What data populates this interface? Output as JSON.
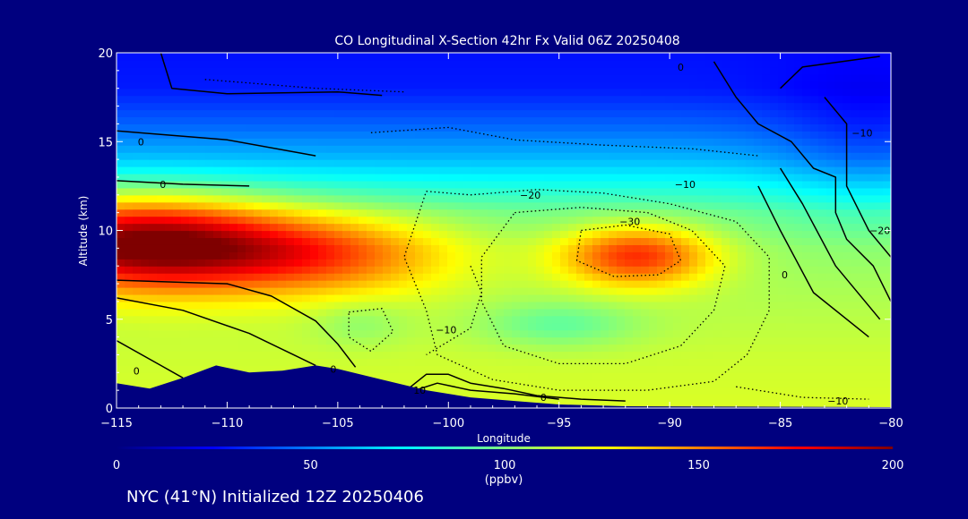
{
  "chart_data": {
    "type": "heatmap",
    "title": "CO Longitudinal X-Section 42hr  Fx Valid 06Z 20250408",
    "xlabel": "Longitude",
    "ylabel": "Altitude (km)",
    "xlim": [
      -115,
      -80
    ],
    "ylim": [
      0,
      20
    ],
    "x_ticks": [
      -115,
      -110,
      -105,
      -100,
      -95,
      -90,
      -85,
      -80
    ],
    "x_tick_labels": [
      "−115",
      "−110",
      "−105",
      "−100",
      "−95",
      "−90",
      "−85",
      "−80"
    ],
    "y_ticks": [
      0,
      5,
      10,
      15,
      20
    ],
    "y_tick_labels": [
      "0",
      "5",
      "10",
      "15",
      "20"
    ],
    "colorbar": {
      "min": 0,
      "max": 200,
      "ticks": [
        0,
        50,
        100,
        150,
        200
      ],
      "tick_labels": [
        "0",
        "50",
        "100",
        "150",
        "200"
      ],
      "unit": "(ppbv)"
    },
    "co_field": {
      "background": [
        {
          "alt": 0,
          "value": 118
        },
        {
          "alt": 3,
          "value": 115
        },
        {
          "alt": 6,
          "value": 110
        },
        {
          "alt": 9,
          "value": 105
        },
        {
          "alt": 11,
          "value": 96
        },
        {
          "alt": 12.5,
          "value": 80
        },
        {
          "alt": 14,
          "value": 62
        },
        {
          "alt": 16,
          "value": 44
        },
        {
          "alt": 18,
          "value": 30
        },
        {
          "alt": 20,
          "value": 28
        }
      ],
      "features": [
        {
          "lon": -114,
          "alt": 9.3,
          "sigma_lon": 4.5,
          "sigma_alt": 1.8,
          "value": 95
        },
        {
          "lon": -106,
          "alt": 8.7,
          "sigma_lon": 4.5,
          "sigma_alt": 1.6,
          "value": 50
        },
        {
          "lon": -91.5,
          "alt": 8.6,
          "sigma_lon": 2.4,
          "sigma_alt": 1.2,
          "value": 60
        },
        {
          "lon": -95,
          "alt": 4.7,
          "sigma_lon": 2.5,
          "sigma_alt": 0.9,
          "value": -18
        },
        {
          "lon": -104,
          "alt": 4.8,
          "sigma_lon": 1.5,
          "sigma_alt": 0.9,
          "value": -10
        },
        {
          "lon": -81,
          "alt": 14.5,
          "sigma_lon": 3,
          "sigma_alt": 3,
          "value": -15
        }
      ]
    },
    "terrain": [
      {
        "lon": -115,
        "alt": 1.4
      },
      {
        "lon": -113.5,
        "alt": 1.1
      },
      {
        "lon": -112,
        "alt": 1.7
      },
      {
        "lon": -110.5,
        "alt": 2.4
      },
      {
        "lon": -109,
        "alt": 2.0
      },
      {
        "lon": -107.5,
        "alt": 2.1
      },
      {
        "lon": -106,
        "alt": 2.4
      },
      {
        "lon": -105,
        "alt": 2.2
      },
      {
        "lon": -103,
        "alt": 1.6
      },
      {
        "lon": -101,
        "alt": 1.0
      },
      {
        "lon": -99,
        "alt": 0.6
      },
      {
        "lon": -97,
        "alt": 0.4
      },
      {
        "lon": -95,
        "alt": 0.2
      },
      {
        "lon": -92,
        "alt": 0.1
      },
      {
        "lon": -80,
        "alt": 0.05
      }
    ],
    "contours": [
      {
        "dashed": false,
        "points": [
          [
            -113,
            20
          ],
          [
            -112.5,
            18
          ],
          [
            -110,
            17.7
          ],
          [
            -105,
            17.8
          ],
          [
            -103,
            17.6
          ]
        ]
      },
      {
        "dashed": false,
        "points": [
          [
            -115,
            15.6
          ],
          [
            -113,
            15.4
          ],
          [
            -110,
            15.1
          ],
          [
            -106,
            14.2
          ]
        ]
      },
      {
        "dashed": false,
        "points": [
          [
            -115,
            12.8
          ],
          [
            -112,
            12.6
          ],
          [
            -109,
            12.5
          ]
        ]
      },
      {
        "dashed": false,
        "points": [
          [
            -115,
            7.2
          ],
          [
            -110,
            7.0
          ],
          [
            -108,
            6.3
          ],
          [
            -106,
            4.9
          ],
          [
            -105,
            3.6
          ],
          [
            -104.2,
            2.3
          ]
        ]
      },
      {
        "dashed": false,
        "points": [
          [
            -115,
            6.2
          ],
          [
            -112,
            5.5
          ],
          [
            -109,
            4.2
          ],
          [
            -107,
            3.0
          ],
          [
            -106,
            2.4
          ]
        ]
      },
      {
        "dashed": false,
        "points": [
          [
            -115,
            3.8
          ],
          [
            -113,
            2.4
          ],
          [
            -112,
            1.7
          ]
        ]
      },
      {
        "dashed": false,
        "points": [
          [
            -102,
            0.9
          ],
          [
            -101,
            1.9
          ],
          [
            -100,
            1.9
          ],
          [
            -99,
            1.4
          ],
          [
            -97.5,
            1.1
          ],
          [
            -96,
            0.7
          ],
          [
            -94,
            0.5
          ],
          [
            -92,
            0.4
          ]
        ]
      },
      {
        "dashed": false,
        "points": [
          [
            -101.5,
            1.0
          ],
          [
            -100.5,
            1.4
          ],
          [
            -99,
            1.0
          ],
          [
            -97,
            0.8
          ],
          [
            -95,
            0.5
          ]
        ]
      },
      {
        "dashed": false,
        "points": [
          [
            -88,
            19.5
          ],
          [
            -87,
            17.5
          ],
          [
            -86,
            16.0
          ],
          [
            -84.5,
            15.0
          ],
          [
            -83.5,
            13.5
          ],
          [
            -82.5,
            13.0
          ],
          [
            -82.5,
            11.0
          ],
          [
            -82.0,
            9.5
          ],
          [
            -80.8,
            8.0
          ],
          [
            -80,
            6.0
          ]
        ]
      },
      {
        "dashed": false,
        "points": [
          [
            -83,
            17.5
          ],
          [
            -82,
            16.0
          ],
          [
            -82,
            12.5
          ],
          [
            -81,
            10.0
          ],
          [
            -80,
            8.5
          ]
        ]
      },
      {
        "dashed": false,
        "points": [
          [
            -85,
            13.5
          ],
          [
            -84,
            11.5
          ],
          [
            -82.5,
            8.0
          ],
          [
            -80.5,
            5.0
          ]
        ]
      },
      {
        "dashed": false,
        "points": [
          [
            -86,
            12.5
          ],
          [
            -85,
            10.0
          ],
          [
            -83.5,
            6.5
          ],
          [
            -81,
            4.0
          ]
        ]
      },
      {
        "dashed": false,
        "points": [
          [
            -80.5,
            19.8
          ],
          [
            -84,
            19.2
          ],
          [
            -85,
            18.0
          ]
        ]
      },
      {
        "dashed": true,
        "points": [
          [
            -101,
            12.2
          ],
          [
            -99,
            12.0
          ],
          [
            -96,
            12.3
          ],
          [
            -93,
            12.1
          ],
          [
            -90,
            11.5
          ],
          [
            -87,
            10.5
          ],
          [
            -85.5,
            8.5
          ],
          [
            -85.5,
            5.5
          ],
          [
            -86.5,
            3.0
          ],
          [
            -88,
            1.5
          ],
          [
            -91,
            1.0
          ],
          [
            -95,
            1.0
          ],
          [
            -98,
            1.6
          ],
          [
            -100.5,
            3.0
          ],
          [
            -101,
            5.5
          ],
          [
            -102,
            8.5
          ],
          [
            -101,
            12.2
          ]
        ]
      },
      {
        "dashed": true,
        "points": [
          [
            -97,
            11.0
          ],
          [
            -94,
            11.3
          ],
          [
            -91,
            11.0
          ],
          [
            -89,
            10.0
          ],
          [
            -87.5,
            8.0
          ],
          [
            -88,
            5.5
          ],
          [
            -89.5,
            3.5
          ],
          [
            -92,
            2.5
          ],
          [
            -95,
            2.5
          ],
          [
            -97.5,
            3.5
          ],
          [
            -98.5,
            6.0
          ],
          [
            -98.5,
            8.5
          ],
          [
            -97,
            11.0
          ]
        ]
      },
      {
        "dashed": true,
        "points": [
          [
            -94,
            10.0
          ],
          [
            -92,
            10.3
          ],
          [
            -90,
            9.8
          ],
          [
            -89.5,
            8.3
          ],
          [
            -90.5,
            7.5
          ],
          [
            -92.5,
            7.4
          ],
          [
            -94.2,
            8.3
          ],
          [
            -94,
            10.0
          ]
        ]
      },
      {
        "dashed": true,
        "points": [
          [
            -103.5,
            15.5
          ],
          [
            -100,
            15.8
          ],
          [
            -97,
            15.1
          ],
          [
            -93,
            14.8
          ],
          [
            -89,
            14.6
          ],
          [
            -86,
            14.2
          ]
        ]
      },
      {
        "dashed": true,
        "points": [
          [
            -111,
            18.5
          ],
          [
            -106,
            18.0
          ],
          [
            -102,
            17.8
          ]
        ]
      },
      {
        "dashed": true,
        "points": [
          [
            -104.5,
            5.4
          ],
          [
            -103,
            5.6
          ],
          [
            -102.5,
            4.3
          ],
          [
            -103.5,
            3.2
          ],
          [
            -104.5,
            4.0
          ],
          [
            -104.5,
            5.4
          ]
        ]
      },
      {
        "dashed": true,
        "points": [
          [
            -99,
            8.0
          ],
          [
            -98.5,
            6.5
          ],
          [
            -99,
            4.5
          ],
          [
            -101,
            3.0
          ]
        ]
      },
      {
        "dashed": true,
        "points": [
          [
            -87,
            1.2
          ],
          [
            -84,
            0.6
          ],
          [
            -81,
            0.5
          ]
        ]
      }
    ],
    "contour_labels": [
      {
        "lon": -113.9,
        "alt": 15.0,
        "text": "0"
      },
      {
        "lon": -112.9,
        "alt": 12.6,
        "text": "0"
      },
      {
        "lon": -114.1,
        "alt": 2.1,
        "text": "0"
      },
      {
        "lon": -89.5,
        "alt": 19.2,
        "text": "0"
      },
      {
        "lon": -84.8,
        "alt": 7.5,
        "text": "0"
      },
      {
        "lon": -95.7,
        "alt": 0.6,
        "text": "0"
      },
      {
        "lon": -105.2,
        "alt": 2.2,
        "text": "0"
      },
      {
        "lon": -100.1,
        "alt": 4.4,
        "text": "−10"
      },
      {
        "lon": -96.3,
        "alt": 12.0,
        "text": "−20"
      },
      {
        "lon": -91.8,
        "alt": 10.5,
        "text": "−30"
      },
      {
        "lon": -89.3,
        "alt": 12.6,
        "text": "−10"
      },
      {
        "lon": -81.3,
        "alt": 15.5,
        "text": "−10"
      },
      {
        "lon": -80.5,
        "alt": 10.0,
        "text": "−20"
      },
      {
        "lon": -82.4,
        "alt": 0.4,
        "text": "−10"
      },
      {
        "lon": -101.3,
        "alt": 1.0,
        "text": "10"
      }
    ]
  },
  "footer_text": "NYC (41°N) Initialized 12Z 20250406"
}
